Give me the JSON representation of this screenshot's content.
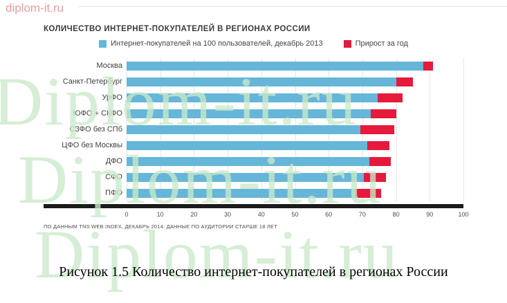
{
  "watermark_top": "diplom-it.ru",
  "watermark_large": "Diplom-it.ru",
  "title": "КОЛИЧЕСТВО ИНТЕРНЕТ-ПОКУПАТЕЛЕЙ В РЕГИОНАХ РОССИИ",
  "legend": [
    {
      "label": "Интернет-покупателей на 100 пользователей, декабрь 2013",
      "color": "#66b6d9"
    },
    {
      "label": "Прирост за год",
      "color": "#e51a3c"
    }
  ],
  "footnote": "ПО ДАННЫМ TNS WEB INDEX, ДЕКАБРЬ 2014. ДАННЫЕ ПО АУДИТОРИИ СТАРШЕ 18 ЛЕТ",
  "caption": "Рисунок 1.5 Количество интернет-покупателей в регионах России",
  "chart_data": {
    "type": "bar",
    "orientation": "horizontal",
    "stacked": true,
    "title": "КОЛИЧЕСТВО ИНТЕРНЕТ-ПОКУПАТЕЛЕЙ В РЕГИОНАХ РОССИИ",
    "categories": [
      "Москва",
      "Санкт-Петербург",
      "УрФО",
      "ЮФО + СКФО",
      "СЗФО без СПб",
      "ЦФО без Москвы",
      "ДФО",
      "СФО",
      "ПФО"
    ],
    "series": [
      {
        "name": "Интернет-покупателей на 100 пользователей, декабрь 2013",
        "color": "#66b6d9",
        "values": [
          88,
          80,
          74.5,
          72.5,
          69.5,
          71.5,
          72,
          70.5,
          68
        ]
      },
      {
        "name": "Прирост за год",
        "color": "#e51a3c",
        "values": [
          3,
          5,
          7.5,
          7.5,
          10,
          6.5,
          6.5,
          6.5,
          7.5
        ]
      }
    ],
    "totals_after_growth": [
      91,
      85,
      82,
      80,
      79.5,
      78,
      78.5,
      77,
      75.5
    ],
    "xlabel": "",
    "ylabel": "",
    "xlim": [
      0,
      100
    ],
    "xticks": [
      0,
      10,
      20,
      30,
      40,
      50,
      60,
      70,
      80,
      90,
      100
    ],
    "grid": "vertical",
    "legend_position": "top"
  }
}
